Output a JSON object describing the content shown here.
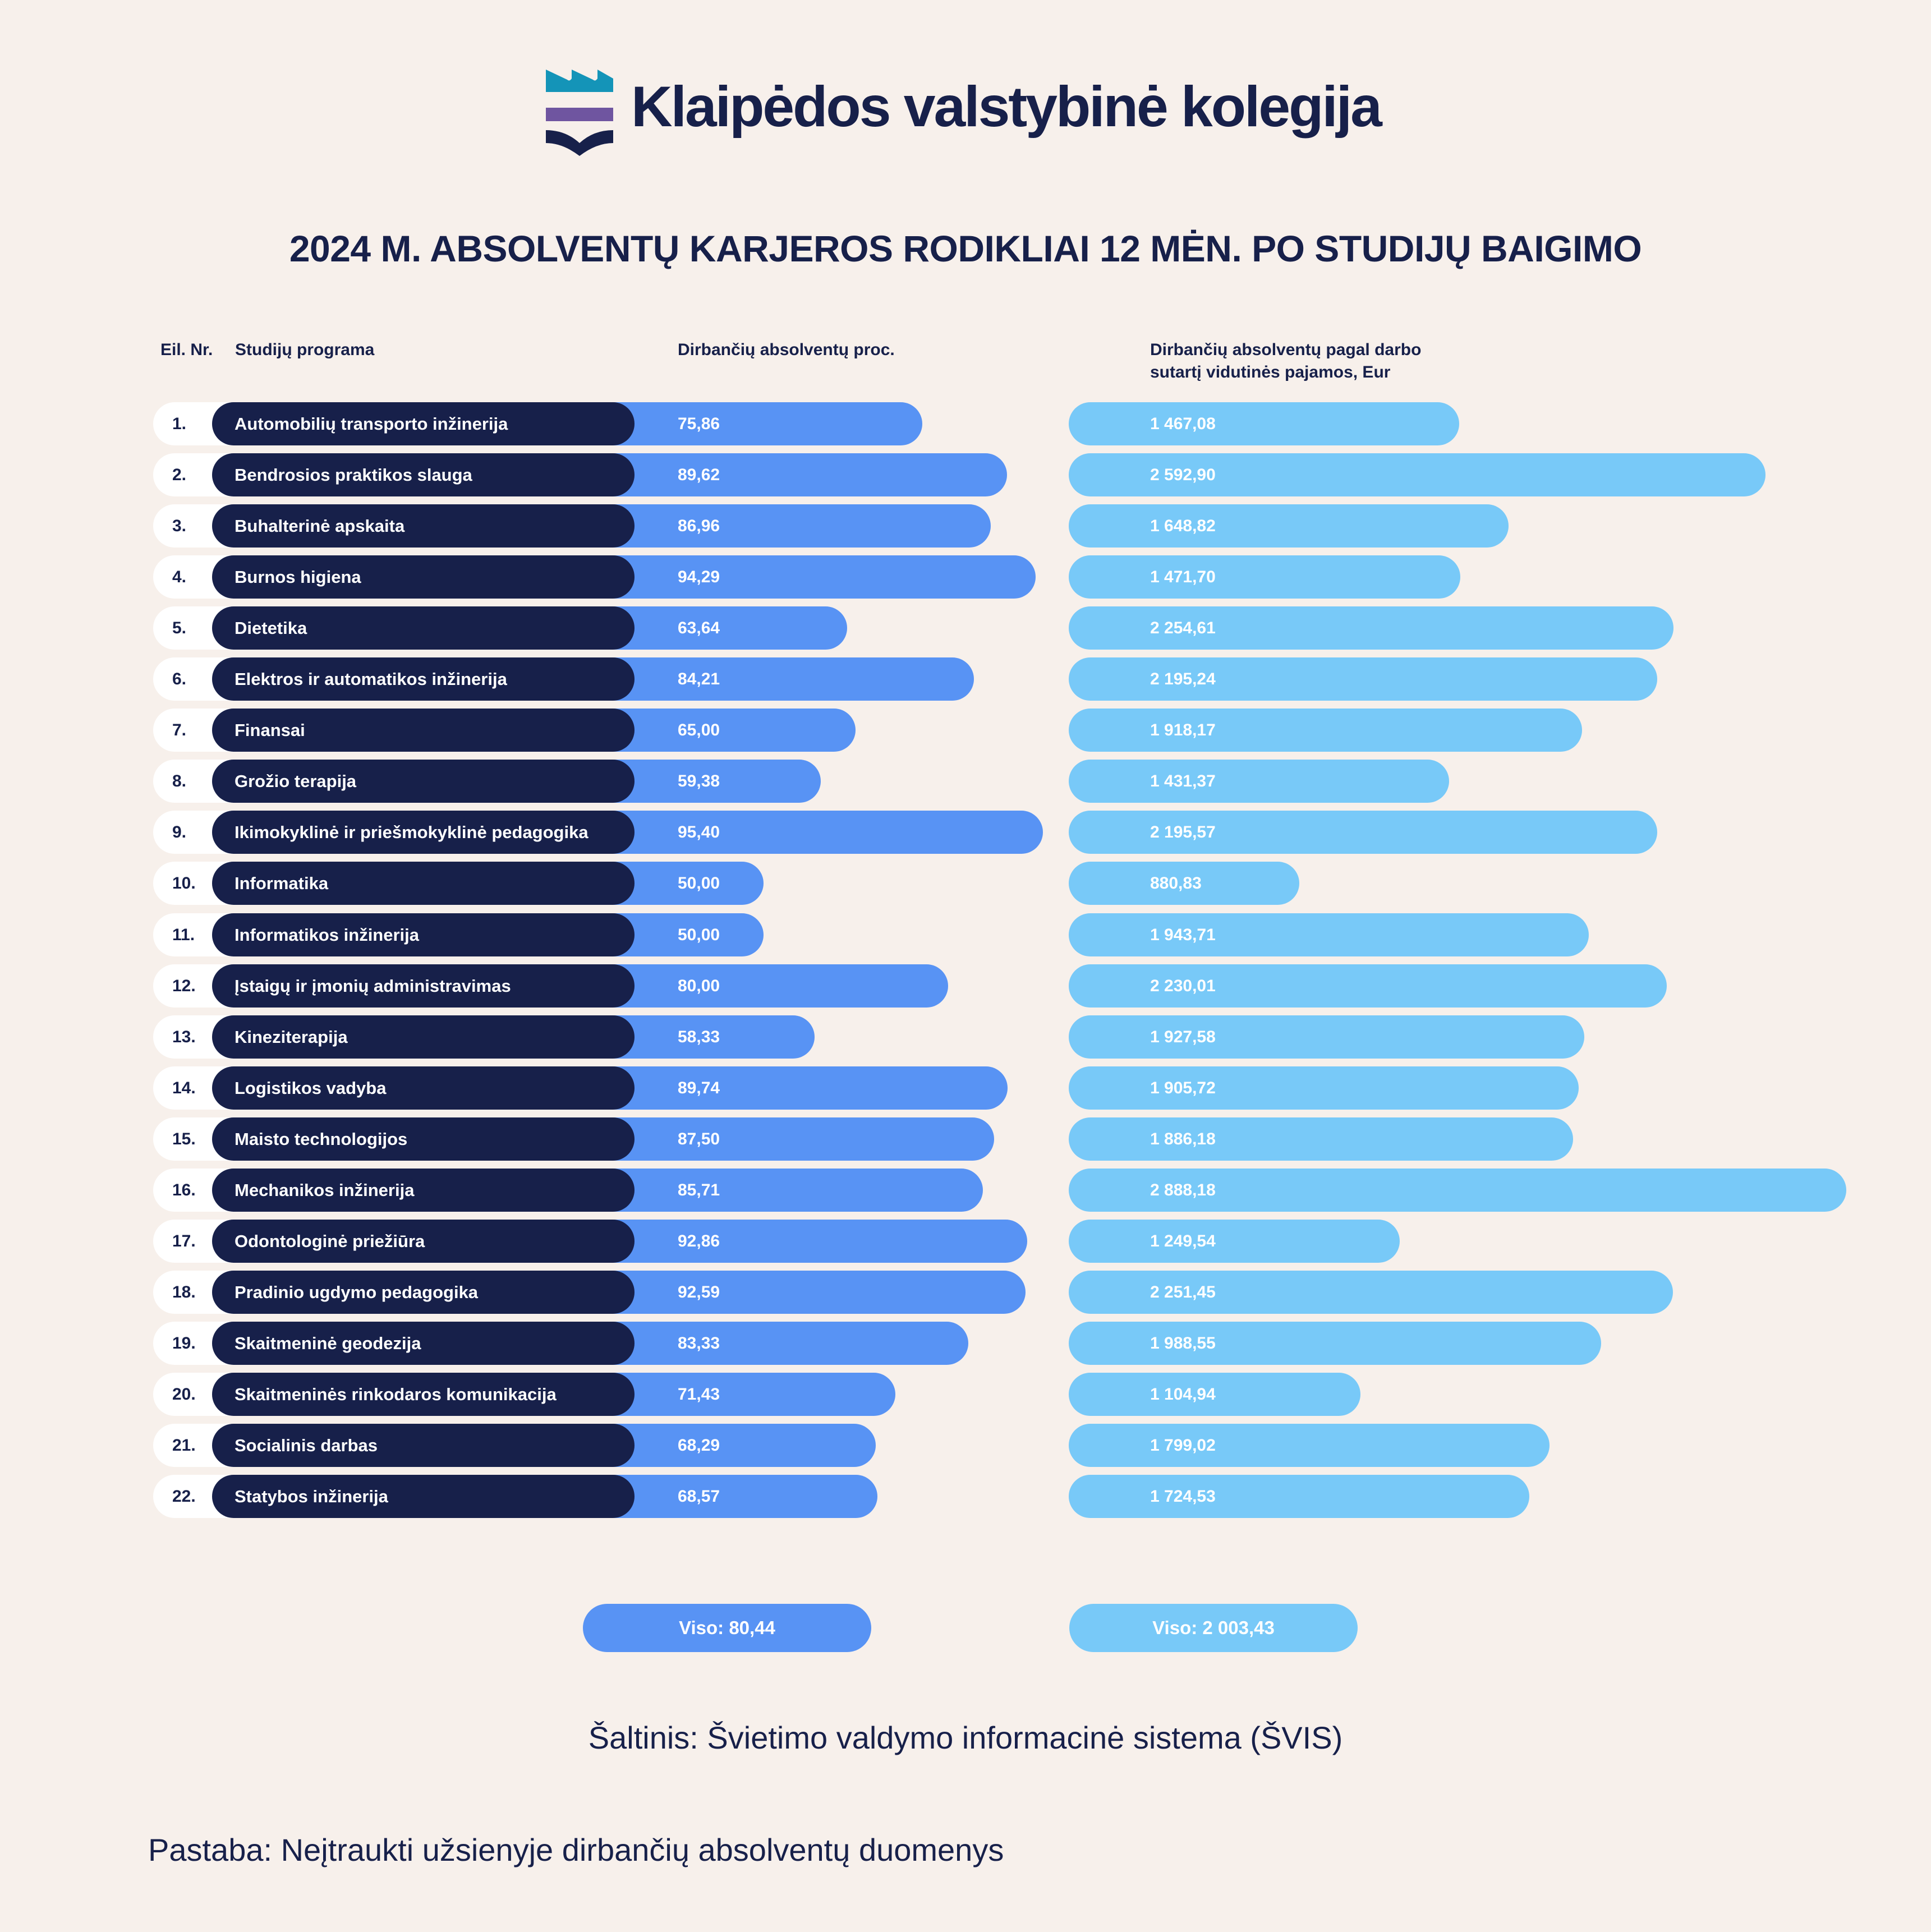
{
  "header": {
    "organization": "Klaipėdos valstybinė kolegija",
    "logo_icon": "kvk-crest-icon",
    "logo_colors": {
      "waves": "#1494b8",
      "stripe": "#6f55a0",
      "book": "#17204a"
    }
  },
  "colors": {
    "background": "#f7f0eb",
    "navy": "#17204a",
    "percent_bar": "#5893f4",
    "income_bar": "#78c9f8",
    "number_pill": "#ffffff"
  },
  "chart_data": {
    "type": "bar",
    "title": "2024 M. ABSOLVENTŲ KARJEROS RODIKLIAI 12 MĖN. PO STUDIJŲ BAIGIMO",
    "columns": {
      "number": "Eil. Nr.",
      "program": "Studijų programa",
      "percent": "Dirbančių absolventų proc.",
      "income_line1": "Dirbančių absolventų pagal darbo",
      "income_line2": "sutartį vidutinės pajamos, Eur"
    },
    "categories": [
      "Automobilių transporto inžinerija",
      "Bendrosios praktikos slauga",
      "Buhalterinė apskaita",
      "Burnos higiena",
      "Dietetika",
      "Elektros ir automatikos inžinerija",
      "Finansai",
      "Grožio terapija",
      "Ikimokyklinė ir priešmokyklinė pedagogika",
      "Informatika",
      "Informatikos inžinerija",
      "Įstaigų ir įmonių administravimas",
      "Kineziterapija",
      "Logistikos vadyba",
      "Maisto technologijos",
      "Mechanikos inžinerija",
      "Odontologinė priežiūra",
      "Pradinio ugdymo pedagogika",
      "Skaitmeninė geodezija",
      "Skaitmeninės rinkodaros komunikacija",
      "Socialinis darbas",
      "Statybos inžinerija"
    ],
    "numbers": [
      "1.",
      "2.",
      "3.",
      "4.",
      "5.",
      "6.",
      "7.",
      "8.",
      "9.",
      "10.",
      "11.",
      "12.",
      "13.",
      "14.",
      "15.",
      "16.",
      "17.",
      "18.",
      "19.",
      "20.",
      "21.",
      "22."
    ],
    "series": [
      {
        "name": "Dirbančių absolventų proc.",
        "values": [
          75.86,
          89.62,
          86.96,
          94.29,
          63.64,
          84.21,
          65.0,
          59.38,
          95.4,
          50.0,
          50.0,
          80.0,
          58.33,
          89.74,
          87.5,
          85.71,
          92.86,
          92.59,
          83.33,
          71.43,
          68.29,
          68.57
        ],
        "labels": [
          "75,86",
          "89,62",
          "86,96",
          "94,29",
          "63,64",
          "84,21",
          "65,00",
          "59,38",
          "95,40",
          "50,00",
          "50,00",
          "80,00",
          "58,33",
          "89,74",
          "87,50",
          "85,71",
          "92,86",
          "92,59",
          "83,33",
          "71,43",
          "68,29",
          "68,57"
        ],
        "total": 80.44,
        "total_label": "Viso: 80,44"
      },
      {
        "name": "Dirbančių absolventų pagal darbo sutartį vidutinės pajamos, Eur",
        "values": [
          1467.08,
          2592.9,
          1648.82,
          1471.7,
          2254.61,
          2195.24,
          1918.17,
          1431.37,
          2195.57,
          880.83,
          1943.71,
          2230.01,
          1927.58,
          1905.72,
          1886.18,
          2888.18,
          1249.54,
          2251.45,
          1988.55,
          1104.94,
          1799.02,
          1724.53
        ],
        "labels": [
          "1 467,08",
          "2 592,90",
          "1 648,82",
          "1 471,70",
          "2 254,61",
          "2 195,24",
          "1 918,17",
          "1 431,37",
          "2 195,57",
          "880,83",
          "1 943,71",
          "2 230,01",
          "1 927,58",
          "1 905,72",
          "1 886,18",
          "2 888,18",
          "1 249,54",
          "2 251,45",
          "1 988,55",
          "1 104,94",
          "1 799,02",
          "1 724,53"
        ],
        "total": 2003.43,
        "total_label": "Viso: 2 003,43"
      }
    ],
    "orientation": "horizontal",
    "grid": false,
    "legend": "none"
  },
  "footer": {
    "source": "Šaltinis: Švietimo valdymo informacinė sistema (ŠVIS)",
    "note": "Pastaba: Neįtraukti užsienyje dirbančių absolventų duomenys"
  }
}
